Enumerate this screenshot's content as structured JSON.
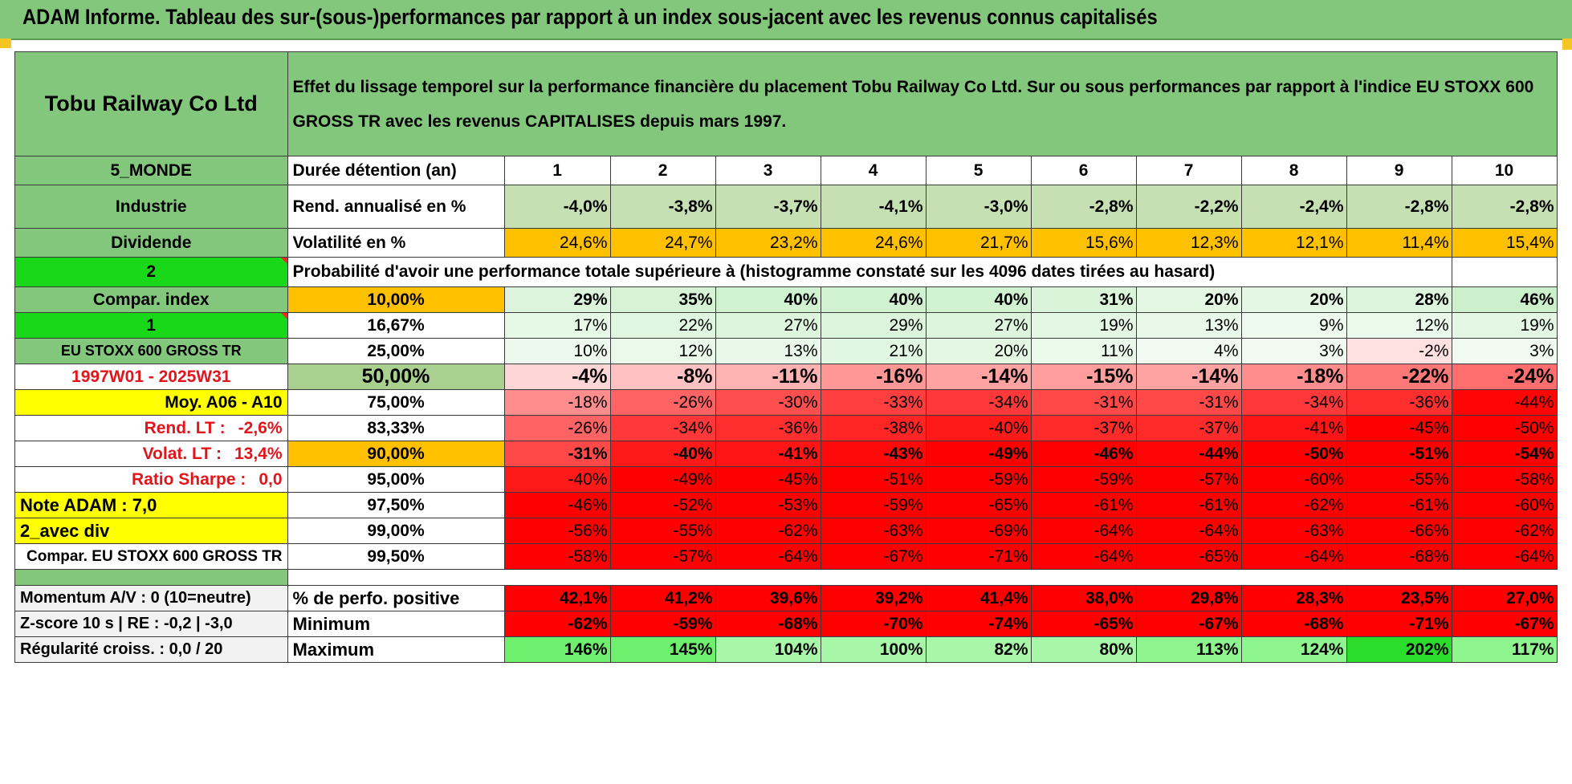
{
  "title": "ADAM Informe. Tableau des sur-(sous-)performances par rapport à un index sous-jacent avec les revenus connus capitalisés",
  "header": {
    "company": "Tobu Railway Co Ltd",
    "description": "Effet du lissage temporel sur la performance financière du placement Tobu Railway Co Ltd. Sur ou sous performances par rapport à l'indice EU STOXX 600 GROSS TR avec les revenus CAPITALISES depuis mars 1997."
  },
  "side": {
    "region": "5_MONDE",
    "sector": "Industrie",
    "dividend_label": "Dividende",
    "dividend_value": "2",
    "compar_index": "Compar. index",
    "compar_value": "1",
    "index_name": "EU STOXX 600 GROSS TR",
    "period": "1997W01 - 2025W31",
    "moy": "Moy. A06 - A10",
    "rend_lt_label": "Rend. LT :",
    "rend_lt_value": "-2,6%",
    "volat_lt_label": "Volat. LT :",
    "volat_lt_value": "13,4%",
    "sharpe_label": "Ratio Sharpe :",
    "sharpe_value": "0,0",
    "note": "Note ADAM : 7,0",
    "avec_div": "2_avec div",
    "compar_long": "Compar. EU STOXX 600 GROSS TR"
  },
  "columns": [
    "1",
    "2",
    "3",
    "4",
    "5",
    "6",
    "7",
    "8",
    "9",
    "10"
  ],
  "duration_label": "Durée détention (an)",
  "rend": {
    "label": "Rend. annualisé en %",
    "values": [
      "-4,0%",
      "-3,8%",
      "-3,7%",
      "-4,1%",
      "-3,0%",
      "-2,8%",
      "-2,2%",
      "-2,4%",
      "-2,8%",
      "-2,8%"
    ]
  },
  "vol": {
    "label": "Volatilité en %",
    "values": [
      "24,6%",
      "24,7%",
      "23,2%",
      "24,6%",
      "21,7%",
      "15,6%",
      "12,3%",
      "12,1%",
      "11,4%",
      "15,4%"
    ]
  },
  "prob_title": "Probabilité d'avoir une performance totale supérieure à (histogramme constaté sur les 4096 dates tirées au hasard)",
  "prob_rows": [
    {
      "p": "10,00%",
      "values": [
        "29%",
        "35%",
        "40%",
        "40%",
        "40%",
        "31%",
        "20%",
        "20%",
        "28%",
        "46%"
      ]
    },
    {
      "p": "16,67%",
      "values": [
        "17%",
        "22%",
        "27%",
        "29%",
        "27%",
        "19%",
        "13%",
        "9%",
        "12%",
        "19%"
      ]
    },
    {
      "p": "25,00%",
      "values": [
        "10%",
        "12%",
        "13%",
        "21%",
        "20%",
        "11%",
        "4%",
        "3%",
        "-2%",
        "3%"
      ]
    },
    {
      "p": "50,00%",
      "values": [
        "-4%",
        "-8%",
        "-11%",
        "-16%",
        "-14%",
        "-15%",
        "-14%",
        "-18%",
        "-22%",
        "-24%"
      ]
    },
    {
      "p": "75,00%",
      "values": [
        "-18%",
        "-26%",
        "-30%",
        "-33%",
        "-34%",
        "-31%",
        "-31%",
        "-34%",
        "-36%",
        "-44%"
      ]
    },
    {
      "p": "83,33%",
      "values": [
        "-26%",
        "-34%",
        "-36%",
        "-38%",
        "-40%",
        "-37%",
        "-37%",
        "-41%",
        "-45%",
        "-50%"
      ]
    },
    {
      "p": "90,00%",
      "values": [
        "-31%",
        "-40%",
        "-41%",
        "-43%",
        "-49%",
        "-46%",
        "-44%",
        "-50%",
        "-51%",
        "-54%"
      ]
    },
    {
      "p": "95,00%",
      "values": [
        "-40%",
        "-49%",
        "-45%",
        "-51%",
        "-59%",
        "-59%",
        "-57%",
        "-60%",
        "-55%",
        "-58%"
      ]
    },
    {
      "p": "97,50%",
      "values": [
        "-46%",
        "-52%",
        "-53%",
        "-59%",
        "-65%",
        "-61%",
        "-61%",
        "-62%",
        "-61%",
        "-60%"
      ]
    },
    {
      "p": "99,00%",
      "values": [
        "-56%",
        "-55%",
        "-62%",
        "-63%",
        "-69%",
        "-64%",
        "-64%",
        "-63%",
        "-66%",
        "-62%"
      ]
    },
    {
      "p": "99,50%",
      "values": [
        "-58%",
        "-57%",
        "-64%",
        "-67%",
        "-71%",
        "-64%",
        "-65%",
        "-64%",
        "-68%",
        "-64%"
      ]
    }
  ],
  "bottom": [
    {
      "side": "Momentum A/V : 0 (10=neutre)",
      "label": "% de perfo. positive",
      "values": [
        "42,1%",
        "41,2%",
        "39,6%",
        "39,2%",
        "41,4%",
        "38,0%",
        "29,8%",
        "28,3%",
        "23,5%",
        "27,0%"
      ]
    },
    {
      "side": "Z-score 10 s | RE : -0,2 | -3,0",
      "label": "Minimum",
      "values": [
        "-62%",
        "-59%",
        "-68%",
        "-70%",
        "-74%",
        "-65%",
        "-67%",
        "-68%",
        "-71%",
        "-67%"
      ]
    },
    {
      "side": "Régularité croiss. : 0,0 / 20",
      "label": "Maximum",
      "values": [
        "146%",
        "145%",
        "104%",
        "100%",
        "82%",
        "80%",
        "113%",
        "124%",
        "202%",
        "117%"
      ]
    }
  ],
  "colors": {
    "header_green": "#83c77c",
    "bright_green": "#19d719",
    "yellow": "#ffff00",
    "orange": "#ffc000",
    "red": "#ff0000",
    "dark_red_text": "#e0161c"
  }
}
